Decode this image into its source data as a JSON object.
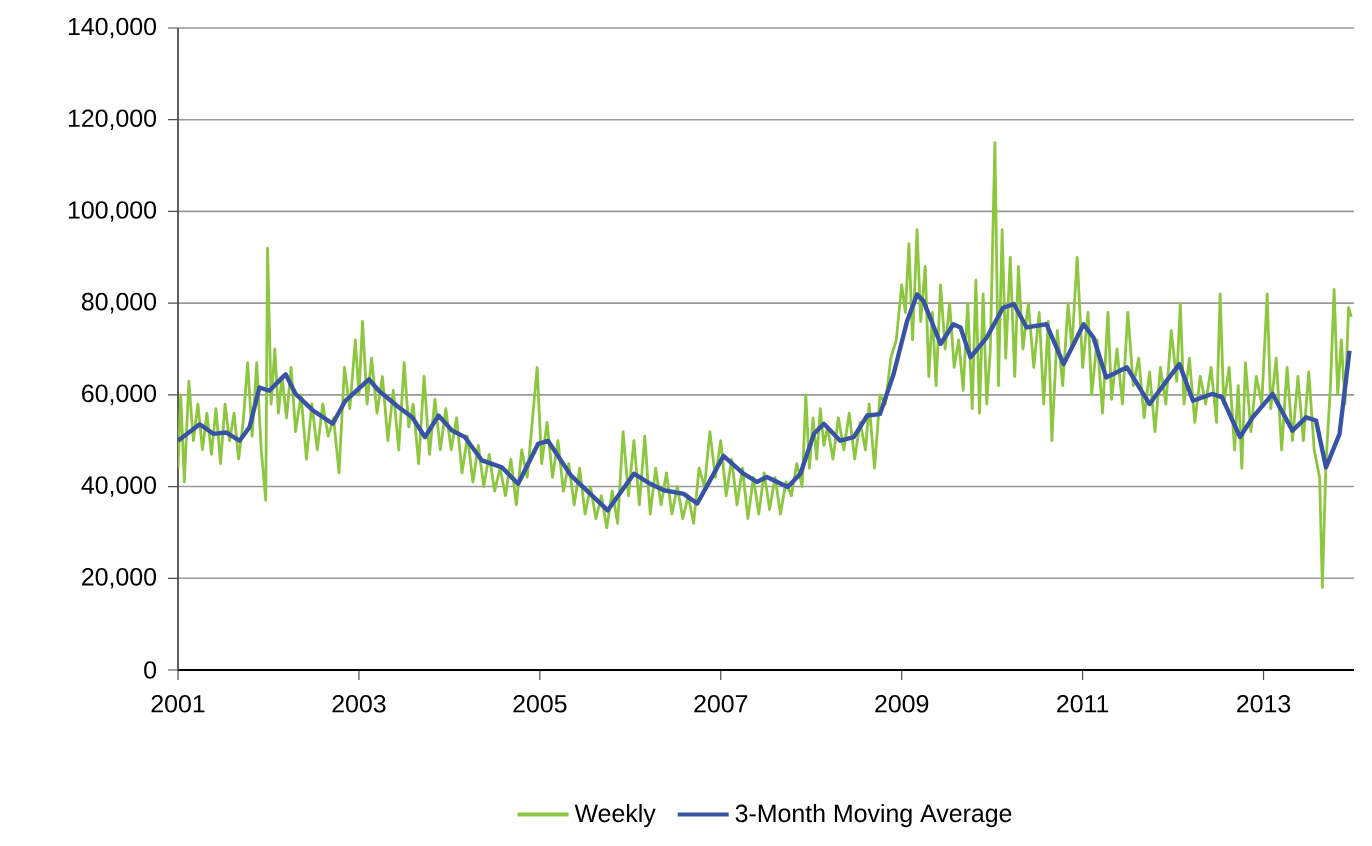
{
  "chart_data": {
    "type": "line",
    "xlim": [
      2001,
      2014
    ],
    "xticks": [
      2001,
      2003,
      2005,
      2007,
      2009,
      2011,
      2013
    ],
    "ylim": [
      0,
      140000
    ],
    "yticks": [
      {
        "value": 0,
        "label": "0"
      },
      {
        "value": 20000,
        "label": "20,000"
      },
      {
        "value": 40000,
        "label": "40,000"
      },
      {
        "value": 60000,
        "label": "60,000"
      },
      {
        "value": 80000,
        "label": "80,000"
      },
      {
        "value": 100000,
        "label": "100,000"
      },
      {
        "value": 120000,
        "label": "120,000"
      },
      {
        "value": 140000,
        "label": "140,000"
      }
    ],
    "grid": "y",
    "legend": "bottom",
    "series": [
      {
        "name": "Weekly",
        "color": "#8dc63f",
        "x": [
          2001.0,
          2001.03,
          2001.07,
          2001.12,
          2001.17,
          2001.22,
          2001.27,
          2001.32,
          2001.37,
          2001.42,
          2001.47,
          2001.52,
          2001.57,
          2001.62,
          2001.67,
          2001.72,
          2001.77,
          2001.82,
          2001.87,
          2001.92,
          2001.97,
          2001.99,
          2002.03,
          2002.07,
          2002.11,
          2002.15,
          2002.2,
          2002.25,
          2002.3,
          2002.36,
          2002.42,
          2002.48,
          2002.54,
          2002.6,
          2002.66,
          2002.72,
          2002.78,
          2002.84,
          2002.9,
          2002.96,
          2003.0,
          2003.04,
          2003.09,
          2003.14,
          2003.2,
          2003.26,
          2003.32,
          2003.38,
          2003.44,
          2003.5,
          2003.55,
          2003.6,
          2003.66,
          2003.72,
          2003.78,
          2003.84,
          2003.9,
          2003.96,
          2004.02,
          2004.08,
          2004.14,
          2004.2,
          2004.26,
          2004.32,
          2004.38,
          2004.44,
          2004.5,
          2004.56,
          2004.62,
          2004.68,
          2004.74,
          2004.8,
          2004.86,
          2004.92,
          2004.97,
          2005.02,
          2005.08,
          2005.14,
          2005.2,
          2005.26,
          2005.32,
          2005.38,
          2005.44,
          2005.5,
          2005.56,
          2005.62,
          2005.68,
          2005.74,
          2005.8,
          2005.86,
          2005.92,
          2005.98,
          2006.04,
          2006.1,
          2006.16,
          2006.22,
          2006.28,
          2006.34,
          2006.4,
          2006.46,
          2006.52,
          2006.58,
          2006.64,
          2006.7,
          2006.76,
          2006.82,
          2006.88,
          2006.94,
          2007.0,
          2007.06,
          2007.12,
          2007.18,
          2007.24,
          2007.3,
          2007.36,
          2007.42,
          2007.48,
          2007.54,
          2007.6,
          2007.66,
          2007.72,
          2007.78,
          2007.84,
          2007.9,
          2007.94,
          2007.98,
          2008.02,
          2008.06,
          2008.1,
          2008.14,
          2008.18,
          2008.24,
          2008.3,
          2008.36,
          2008.42,
          2008.48,
          2008.54,
          2008.6,
          2008.64,
          2008.7,
          2008.76,
          2008.82,
          2008.88,
          2008.94,
          2009.0,
          2009.04,
          2009.08,
          2009.12,
          2009.17,
          2009.21,
          2009.26,
          2009.3,
          2009.34,
          2009.38,
          2009.43,
          2009.48,
          2009.53,
          2009.58,
          2009.63,
          2009.68,
          2009.73,
          2009.78,
          2009.82,
          2009.86,
          2009.9,
          2009.94,
          2009.98,
          2010.03,
          2010.07,
          2010.11,
          2010.15,
          2010.2,
          2010.25,
          2010.29,
          2010.34,
          2010.4,
          2010.46,
          2010.52,
          2010.57,
          2010.62,
          2010.66,
          2010.72,
          2010.78,
          2010.84,
          2010.88,
          2010.94,
          2011.0,
          2011.06,
          2011.1,
          2011.16,
          2011.22,
          2011.28,
          2011.32,
          2011.38,
          2011.44,
          2011.5,
          2011.56,
          2011.62,
          2011.68,
          2011.74,
          2011.8,
          2011.86,
          2011.92,
          2011.98,
          2012.04,
          2012.08,
          2012.12,
          2012.18,
          2012.24,
          2012.3,
          2012.36,
          2012.42,
          2012.48,
          2012.52,
          2012.56,
          2012.62,
          2012.68,
          2012.72,
          2012.76,
          2012.8,
          2012.86,
          2012.92,
          2012.98,
          2013.04,
          2013.08,
          2013.14,
          2013.2,
          2013.26,
          2013.32,
          2013.38,
          2013.44,
          2013.5,
          2013.56,
          2013.62,
          2013.65,
          2013.69,
          2013.74,
          2013.78,
          2013.82,
          2013.86,
          2013.9,
          2013.94,
          2013.97
        ],
        "values": [
          44000,
          60000,
          41000,
          63000,
          50000,
          58000,
          48000,
          56000,
          47000,
          57000,
          45000,
          58000,
          50000,
          56000,
          46000,
          54000,
          67000,
          51000,
          67000,
          48000,
          37000,
          92000,
          58000,
          70000,
          56000,
          64000,
          55000,
          66000,
          52000,
          60000,
          46000,
          58000,
          48000,
          58000,
          51000,
          55000,
          43000,
          66000,
          57000,
          72000,
          60000,
          76000,
          58000,
          68000,
          56000,
          64000,
          50000,
          61000,
          48000,
          67000,
          53000,
          58000,
          45000,
          64000,
          47000,
          59000,
          48000,
          57000,
          48000,
          55000,
          43000,
          51000,
          41000,
          49000,
          40000,
          47000,
          39000,
          44000,
          38000,
          46000,
          36000,
          48000,
          42000,
          55000,
          66000,
          45000,
          54000,
          42000,
          50000,
          39000,
          45000,
          36000,
          44000,
          34000,
          40000,
          33000,
          38000,
          31000,
          39000,
          32000,
          52000,
          38000,
          50000,
          36000,
          51000,
          34000,
          44000,
          36000,
          43000,
          34000,
          40000,
          33000,
          38000,
          32000,
          44000,
          40000,
          52000,
          42000,
          50000,
          38000,
          46000,
          36000,
          44000,
          33000,
          42000,
          34000,
          43000,
          35000,
          42000,
          34000,
          41000,
          38000,
          45000,
          40000,
          60000,
          44000,
          55000,
          46000,
          57000,
          49000,
          53000,
          46000,
          55000,
          48000,
          56000,
          46000,
          54000,
          48000,
          58000,
          44000,
          60000,
          58000,
          68000,
          72000,
          84000,
          78000,
          93000,
          72000,
          96000,
          76000,
          88000,
          64000,
          78000,
          62000,
          84000,
          70000,
          80000,
          66000,
          72000,
          61000,
          80000,
          57000,
          85000,
          56000,
          82000,
          58000,
          70000,
          115000,
          62000,
          96000,
          68000,
          90000,
          64000,
          88000,
          70000,
          80000,
          66000,
          78000,
          58000,
          76000,
          50000,
          74000,
          62000,
          80000,
          70000,
          90000,
          66000,
          78000,
          60000,
          72000,
          56000,
          78000,
          59000,
          70000,
          58000,
          78000,
          62000,
          68000,
          55000,
          65000,
          52000,
          66000,
          58000,
          74000,
          63000,
          80000,
          58000,
          68000,
          54000,
          64000,
          58000,
          66000,
          54000,
          82000,
          58000,
          66000,
          48000,
          62000,
          44000,
          67000,
          52000,
          64000,
          58000,
          82000,
          57000,
          68000,
          48000,
          66000,
          50000,
          64000,
          50000,
          65000,
          48000,
          42000,
          18000,
          45000,
          62000,
          83000,
          60000,
          72000,
          58000,
          79000,
          77000
        ]
      },
      {
        "name": "3-Month Moving Average",
        "color": "#3953a4",
        "x": [
          2001.0,
          2001.24,
          2001.39,
          2001.53,
          2001.68,
          2001.79,
          2001.9,
          2002.01,
          2002.12,
          2002.19,
          2002.3,
          2002.49,
          2002.71,
          2002.85,
          2003.11,
          2003.22,
          2003.44,
          2003.59,
          2003.73,
          2003.88,
          2004.03,
          2004.17,
          2004.36,
          2004.58,
          2004.76,
          2004.98,
          2005.09,
          2005.34,
          2005.75,
          2006.04,
          2006.22,
          2006.37,
          2006.59,
          2006.74,
          2006.88,
          2007.03,
          2007.25,
          2007.4,
          2007.51,
          2007.74,
          2007.88,
          2008.03,
          2008.14,
          2008.32,
          2008.47,
          2008.62,
          2008.76,
          2008.91,
          2009.06,
          2009.17,
          2009.24,
          2009.43,
          2009.57,
          2009.65,
          2009.76,
          2009.94,
          2010.12,
          2010.24,
          2010.38,
          2010.6,
          2010.79,
          2011.01,
          2011.12,
          2011.26,
          2011.49,
          2011.74,
          2011.93,
          2012.07,
          2012.22,
          2012.43,
          2012.54,
          2012.74,
          2012.88,
          2013.1,
          2013.32,
          2013.47,
          2013.58,
          2013.69,
          2013.84,
          2013.95
        ],
        "values": [
          50000,
          53600,
          51500,
          51800,
          50000,
          52900,
          61600,
          60900,
          63100,
          64500,
          60200,
          56600,
          53700,
          58700,
          63400,
          60900,
          57300,
          55100,
          50800,
          55500,
          52200,
          50800,
          45700,
          44200,
          40600,
          49300,
          50000,
          42500,
          34800,
          42800,
          40600,
          39200,
          38400,
          36300,
          41300,
          46700,
          42800,
          41000,
          42100,
          39900,
          42800,
          51500,
          53700,
          50000,
          50800,
          55500,
          55800,
          64500,
          76100,
          81900,
          80500,
          71100,
          75400,
          74700,
          68200,
          72500,
          79000,
          79800,
          74700,
          75400,
          66700,
          75400,
          72500,
          63800,
          66000,
          58000,
          63100,
          66700,
          58700,
          60200,
          59500,
          50800,
          55100,
          60200,
          52200,
          55100,
          54400,
          44200,
          51500,
          69600
        ]
      }
    ]
  }
}
